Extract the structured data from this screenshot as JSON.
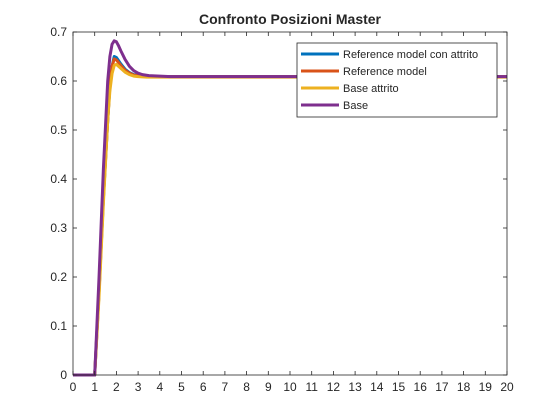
{
  "chart_data": {
    "type": "line",
    "title": "Confronto Posizioni Master",
    "xlabel": "",
    "ylabel": "",
    "xlim": [
      0,
      20
    ],
    "ylim": [
      0,
      0.7
    ],
    "xticks": [
      0,
      1,
      2,
      3,
      4,
      5,
      6,
      7,
      8,
      9,
      10,
      11,
      12,
      13,
      14,
      15,
      16,
      17,
      18,
      19,
      20
    ],
    "yticks": [
      0,
      0.1,
      0.2,
      0.3,
      0.4,
      0.5,
      0.6,
      0.7
    ],
    "grid": false,
    "legend_position": "top-right",
    "series": [
      {
        "name": "Reference model con attrito",
        "color": "#0072BD",
        "x": [
          0,
          1.0,
          1.2,
          1.4,
          1.6,
          1.7,
          1.8,
          1.9,
          2.0,
          2.2,
          2.4,
          2.6,
          2.8,
          3.0,
          3.4,
          3.8,
          4.5,
          6,
          8,
          10,
          12,
          14,
          16,
          18,
          20
        ],
        "y": [
          0,
          0,
          0.17,
          0.36,
          0.52,
          0.59,
          0.63,
          0.65,
          0.648,
          0.635,
          0.624,
          0.617,
          0.613,
          0.611,
          0.61,
          0.609,
          0.609,
          0.609,
          0.609,
          0.609,
          0.609,
          0.609,
          0.609,
          0.609,
          0.609
        ]
      },
      {
        "name": "Reference model",
        "color": "#D95319",
        "x": [
          0,
          1.0,
          1.2,
          1.4,
          1.6,
          1.7,
          1.8,
          1.9,
          2.0,
          2.2,
          2.4,
          2.6,
          2.8,
          3.0,
          3.4,
          3.8,
          4.5,
          6,
          8,
          10,
          12,
          14,
          16,
          18,
          20
        ],
        "y": [
          0,
          0,
          0.17,
          0.36,
          0.52,
          0.59,
          0.63,
          0.645,
          0.643,
          0.632,
          0.622,
          0.616,
          0.612,
          0.611,
          0.61,
          0.609,
          0.609,
          0.609,
          0.609,
          0.609,
          0.609,
          0.609,
          0.609,
          0.609,
          0.609
        ]
      },
      {
        "name": "Base attrito",
        "color": "#EDB120",
        "x": [
          0,
          1.0,
          1.2,
          1.4,
          1.6,
          1.7,
          1.8,
          1.9,
          2.0,
          2.2,
          2.4,
          2.6,
          2.8,
          3.0,
          3.4,
          3.8,
          4.5,
          6,
          8,
          10,
          12,
          14,
          16,
          18,
          20
        ],
        "y": [
          0,
          0,
          0.16,
          0.35,
          0.52,
          0.58,
          0.615,
          0.632,
          0.634,
          0.626,
          0.618,
          0.613,
          0.61,
          0.609,
          0.608,
          0.608,
          0.608,
          0.608,
          0.608,
          0.608,
          0.608,
          0.608,
          0.608,
          0.608,
          0.608
        ]
      },
      {
        "name": "Base",
        "color": "#7E2F8E",
        "x": [
          0,
          1.0,
          1.2,
          1.4,
          1.6,
          1.7,
          1.8,
          1.9,
          2.0,
          2.1,
          2.2,
          2.4,
          2.6,
          2.8,
          3.0,
          3.2,
          3.5,
          4.0,
          4.5,
          6,
          8,
          10,
          12,
          14,
          16,
          18,
          20
        ],
        "y": [
          0,
          0,
          0.2,
          0.42,
          0.6,
          0.65,
          0.675,
          0.682,
          0.68,
          0.672,
          0.662,
          0.644,
          0.63,
          0.621,
          0.616,
          0.613,
          0.611,
          0.61,
          0.609,
          0.609,
          0.609,
          0.609,
          0.609,
          0.609,
          0.609,
          0.609,
          0.609
        ]
      }
    ]
  }
}
